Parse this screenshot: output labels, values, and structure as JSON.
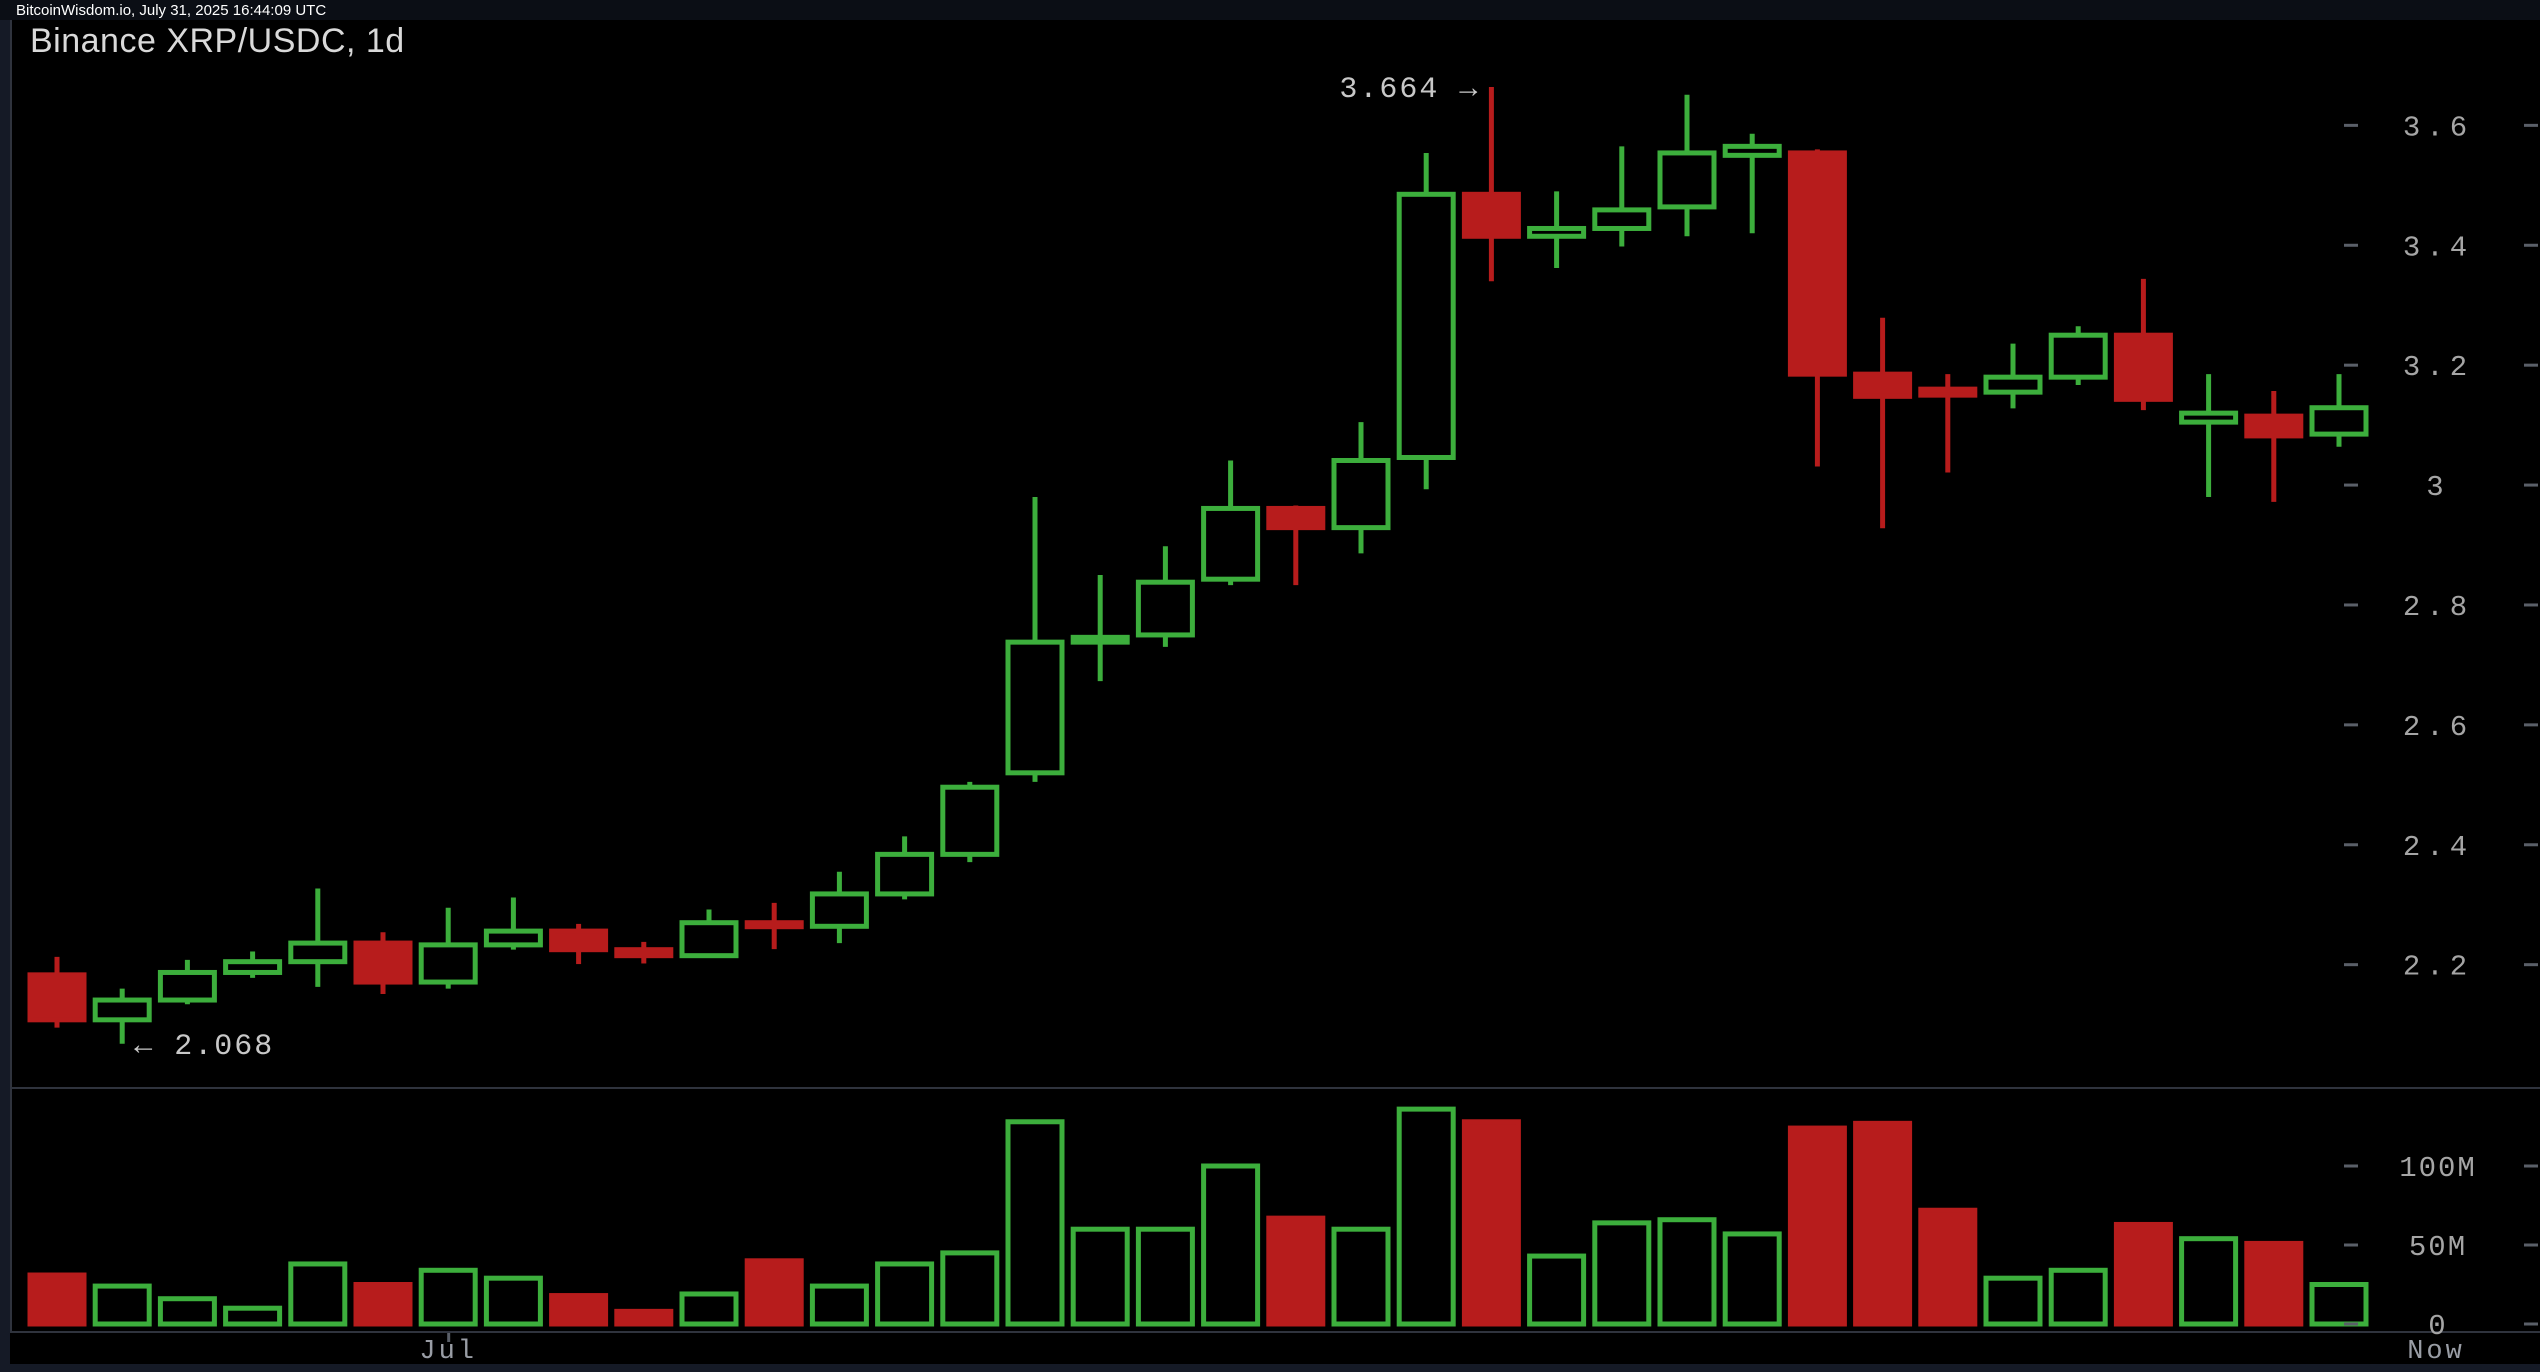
{
  "header": {
    "text": "BitcoinWisdom.io, July 31, 2025 16:44:09 UTC"
  },
  "chart": {
    "title": "Binance XRP/USDC, 1d"
  },
  "colors": {
    "up": "#3cae3c",
    "down": "#b71c1c",
    "pane_bg": "#000000",
    "frame_bg": "#151a26",
    "topbar_bg": "#0b0e15",
    "border": "#2f333d",
    "tick_dash": "#5a5f68",
    "axis_text": "#a5a5a5",
    "annotation_text": "#c8c8c8",
    "xlabel_text": "#999da5"
  },
  "annotations": {
    "high": {
      "text": "3.664 →",
      "value": 3.664,
      "candle_index": 22
    },
    "low": {
      "text": "← 2.068",
      "value": 2.068,
      "candle_index": 1
    }
  },
  "chart_data": {
    "type": "candlestick",
    "title": "Binance XRP/USDC, 1d",
    "exchange": "Binance",
    "pair": "XRP/USDC",
    "interval": "1d",
    "price_axis": {
      "ticks": [
        {
          "label": "3.6",
          "value": 3.6
        },
        {
          "label": "3.4",
          "value": 3.4
        },
        {
          "label": "3.2",
          "value": 3.2
        },
        {
          "label": "3",
          "value": 3.0
        },
        {
          "label": "2.8",
          "value": 2.8
        },
        {
          "label": "2.6",
          "value": 2.6
        },
        {
          "label": "2.4",
          "value": 2.4
        },
        {
          "label": "2.2",
          "value": 2.2
        }
      ]
    },
    "volume_axis": {
      "unit": "M",
      "ticks": [
        {
          "label": "100M",
          "value": 100
        },
        {
          "label": "50M",
          "value": 50
        },
        {
          "label": "0",
          "value": 0
        }
      ]
    },
    "x_axis": {
      "labels": [
        {
          "text": "Jul",
          "candle_index": 6,
          "tick": true
        },
        {
          "text": "Now",
          "at_right_axis": true,
          "tick": false
        }
      ]
    },
    "candles": [
      {
        "o": 2.183,
        "h": 2.213,
        "l": 2.095,
        "c": 2.108,
        "v": 31
      },
      {
        "o": 2.108,
        "h": 2.16,
        "l": 2.068,
        "c": 2.141,
        "v": 24
      },
      {
        "o": 2.141,
        "h": 2.208,
        "l": 2.134,
        "c": 2.187,
        "v": 16
      },
      {
        "o": 2.187,
        "h": 2.222,
        "l": 2.178,
        "c": 2.205,
        "v": 10
      },
      {
        "o": 2.205,
        "h": 2.327,
        "l": 2.163,
        "c": 2.236,
        "v": 38
      },
      {
        "o": 2.236,
        "h": 2.254,
        "l": 2.151,
        "c": 2.171,
        "v": 25
      },
      {
        "o": 2.171,
        "h": 2.295,
        "l": 2.16,
        "c": 2.233,
        "v": 34
      },
      {
        "o": 2.233,
        "h": 2.312,
        "l": 2.225,
        "c": 2.256,
        "v": 29
      },
      {
        "o": 2.256,
        "h": 2.268,
        "l": 2.201,
        "c": 2.225,
        "v": 18
      },
      {
        "o": 2.225,
        "h": 2.238,
        "l": 2.202,
        "c": 2.215,
        "v": 8
      },
      {
        "o": 2.215,
        "h": 2.292,
        "l": 2.212,
        "c": 2.27,
        "v": 19
      },
      {
        "o": 2.27,
        "h": 2.303,
        "l": 2.226,
        "c": 2.264,
        "v": 40
      },
      {
        "o": 2.264,
        "h": 2.355,
        "l": 2.236,
        "c": 2.318,
        "v": 24
      },
      {
        "o": 2.318,
        "h": 2.414,
        "l": 2.309,
        "c": 2.384,
        "v": 38
      },
      {
        "o": 2.384,
        "h": 2.505,
        "l": 2.371,
        "c": 2.496,
        "v": 45
      },
      {
        "o": 2.52,
        "h": 2.98,
        "l": 2.505,
        "c": 2.738,
        "v": 128
      },
      {
        "o": 2.738,
        "h": 2.85,
        "l": 2.673,
        "c": 2.746,
        "v": 60
      },
      {
        "o": 2.75,
        "h": 2.898,
        "l": 2.73,
        "c": 2.838,
        "v": 60
      },
      {
        "o": 2.843,
        "h": 3.041,
        "l": 2.833,
        "c": 2.961,
        "v": 100
      },
      {
        "o": 2.961,
        "h": 2.966,
        "l": 2.833,
        "c": 2.929,
        "v": 67
      },
      {
        "o": 2.929,
        "h": 3.105,
        "l": 2.886,
        "c": 3.041,
        "v": 60
      },
      {
        "o": 3.046,
        "h": 3.554,
        "l": 2.993,
        "c": 3.485,
        "v": 136
      },
      {
        "o": 3.485,
        "h": 3.664,
        "l": 3.34,
        "c": 3.415,
        "v": 128
      },
      {
        "o": 3.415,
        "h": 3.49,
        "l": 3.362,
        "c": 3.428,
        "v": 43
      },
      {
        "o": 3.428,
        "h": 3.565,
        "l": 3.398,
        "c": 3.459,
        "v": 64
      },
      {
        "o": 3.464,
        "h": 3.651,
        "l": 3.415,
        "c": 3.554,
        "v": 66
      },
      {
        "o": 3.55,
        "h": 3.586,
        "l": 3.42,
        "c": 3.565,
        "v": 57
      },
      {
        "o": 3.554,
        "h": 3.56,
        "l": 3.031,
        "c": 3.185,
        "v": 124
      },
      {
        "o": 3.185,
        "h": 3.279,
        "l": 2.928,
        "c": 3.148,
        "v": 127
      },
      {
        "o": 3.16,
        "h": 3.185,
        "l": 3.021,
        "c": 3.15,
        "v": 72
      },
      {
        "o": 3.155,
        "h": 3.236,
        "l": 3.128,
        "c": 3.18,
        "v": 29
      },
      {
        "o": 3.18,
        "h": 3.265,
        "l": 3.167,
        "c": 3.25,
        "v": 34
      },
      {
        "o": 3.25,
        "h": 3.344,
        "l": 3.125,
        "c": 3.143,
        "v": 63
      },
      {
        "o": 3.105,
        "h": 3.185,
        "l": 2.98,
        "c": 3.12,
        "v": 54
      },
      {
        "o": 3.115,
        "h": 3.157,
        "l": 2.972,
        "c": 3.082,
        "v": 51
      },
      {
        "o": 3.085,
        "h": 3.185,
        "l": 3.064,
        "c": 3.129,
        "v": 25
      }
    ]
  }
}
